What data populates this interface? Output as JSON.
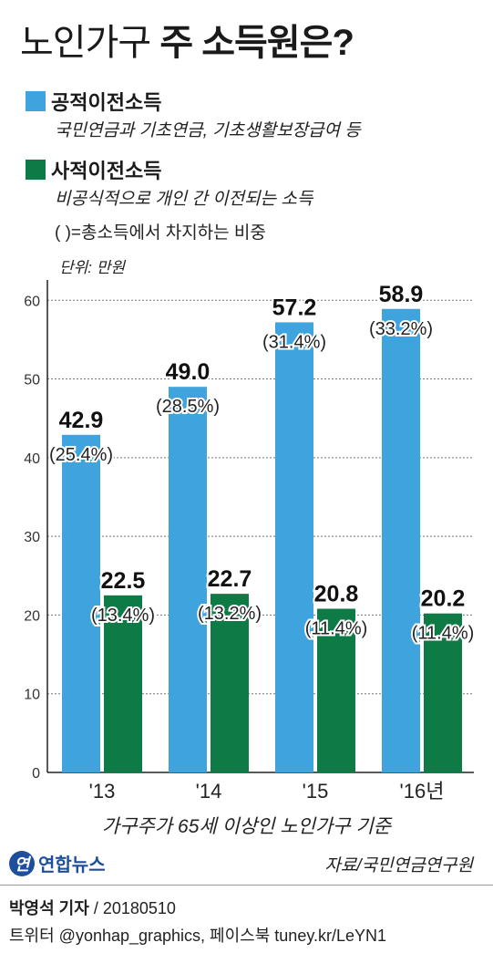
{
  "header": {
    "title_part1": "노인가구",
    "title_part2": "주 소득원은?"
  },
  "legend": [
    {
      "label": "공적이전소득",
      "desc": "국민연금과 기초연금, 기초생활보장급여 등",
      "color": "#3fa3de"
    },
    {
      "label": "사적이전소득",
      "desc": "비공식적으로 개인 간 이전되는 소득",
      "color": "#0e7a45"
    }
  ],
  "note": "( )=총소득에서 차지하는 비중",
  "unit": "단위: 만원",
  "chart_data": {
    "type": "bar",
    "categories": [
      "'13",
      "'14",
      "'15",
      "'16년"
    ],
    "series": [
      {
        "name": "공적이전소득",
        "values": [
          42.9,
          49.0,
          57.2,
          58.9
        ],
        "shares": [
          "(25.4%)",
          "(28.5%)",
          "(31.4%)",
          "(33.2%)"
        ],
        "color": "#3fa3de"
      },
      {
        "name": "사적이전소득",
        "values": [
          22.5,
          22.7,
          20.8,
          20.2
        ],
        "shares": [
          "(13.4%)",
          "(13.2%)",
          "(11.4%)",
          "(11.4%)"
        ],
        "color": "#0e7a45"
      }
    ],
    "value_labels": [
      [
        "42.9",
        "49.0",
        "57.2",
        "58.9"
      ],
      [
        "22.5",
        "22.7",
        "20.8",
        "20.2"
      ]
    ],
    "y_ticks": [
      "0",
      "10",
      "20",
      "30",
      "40",
      "50",
      "60"
    ],
    "ylim": [
      0,
      62
    ],
    "grid": true
  },
  "footnote": "가구주가 65세 이상인 노인가구 기준",
  "source": "자료/국민연금연구원",
  "logo": {
    "letter": "연",
    "text": "연합뉴스"
  },
  "credit": {
    "author": "박영석 기자",
    "date": "/ 20180510"
  },
  "social": "트위터 @yonhap_graphics, 페이스북 tuney.kr/LeYN1"
}
